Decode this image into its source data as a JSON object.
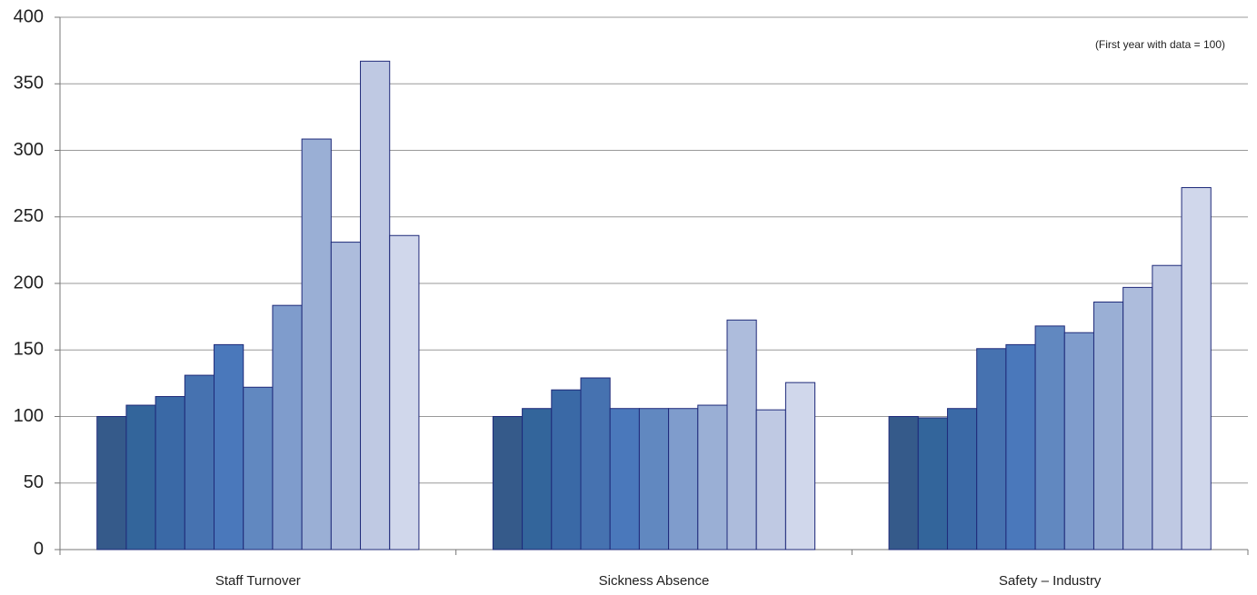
{
  "chart_data": {
    "type": "bar",
    "annotation": "(First year with data = 100)",
    "categories": [
      "Staff Turnover",
      "Sickness Absence",
      "Safety – Industry"
    ],
    "series": [
      {
        "color": "#355a8a",
        "values": [
          100,
          100,
          100
        ]
      },
      {
        "color": "#33659b",
        "values": [
          108.5,
          106,
          99
        ]
      },
      {
        "color": "#3a69a6",
        "values": [
          115,
          120,
          106
        ]
      },
      {
        "color": "#4672b0",
        "values": [
          131,
          129,
          151
        ]
      },
      {
        "color": "#4a78bb",
        "values": [
          154,
          106,
          154
        ]
      },
      {
        "color": "#6188c0",
        "values": [
          122,
          106,
          168
        ]
      },
      {
        "color": "#7f9ccc",
        "values": [
          183.5,
          106,
          163
        ]
      },
      {
        "color": "#9aafd5",
        "values": [
          308.5,
          108.5,
          186
        ]
      },
      {
        "color": "#adbcdc",
        "values": [
          231,
          172.5,
          197
        ]
      },
      {
        "color": "#bfc9e3",
        "values": [
          367,
          105,
          213.5
        ]
      },
      {
        "color": "#d0d7eb",
        "values": [
          236,
          125.5,
          272
        ]
      }
    ],
    "ylim": [
      0,
      400
    ],
    "yticks": [
      0,
      50,
      100,
      150,
      200,
      250,
      300,
      350,
      400
    ],
    "grid": true
  }
}
